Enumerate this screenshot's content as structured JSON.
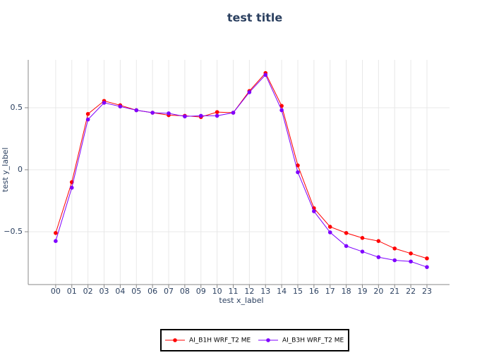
{
  "chart_data": {
    "type": "line",
    "title": "test title",
    "x_label": "test x_label",
    "y_label": "test y_label",
    "categories": [
      "00",
      "01",
      "02",
      "03",
      "04",
      "05",
      "06",
      "07",
      "08",
      "09",
      "10",
      "11",
      "12",
      "13",
      "14",
      "15",
      "16",
      "17",
      "18",
      "19",
      "20",
      "21",
      "22",
      "23"
    ],
    "series": [
      {
        "name": "AI_B1H WRF_T2 ME",
        "color": "#ff0000",
        "values": [
          -0.51,
          -0.1,
          0.45,
          0.555,
          0.52,
          0.48,
          0.46,
          0.44,
          0.435,
          0.425,
          0.465,
          0.46,
          0.635,
          0.78,
          0.515,
          0.035,
          -0.31,
          -0.46,
          -0.51,
          -0.55,
          -0.575,
          -0.635,
          -0.675,
          -0.715
        ]
      },
      {
        "name": "AI_B3H WRF_T2 ME",
        "color": "#7f00ff",
        "values": [
          -0.575,
          -0.145,
          0.405,
          0.54,
          0.51,
          0.48,
          0.46,
          0.455,
          0.43,
          0.435,
          0.435,
          0.46,
          0.625,
          0.765,
          0.48,
          -0.02,
          -0.335,
          -0.505,
          -0.615,
          -0.66,
          -0.705,
          -0.73,
          -0.74,
          -0.785
        ]
      }
    ],
    "ylim": [
      -0.926,
      0.886
    ],
    "yticks": [
      {
        "value": -0.5,
        "label": "−0.5"
      },
      0,
      0.5
    ],
    "grid": true,
    "legend": "bottom"
  }
}
